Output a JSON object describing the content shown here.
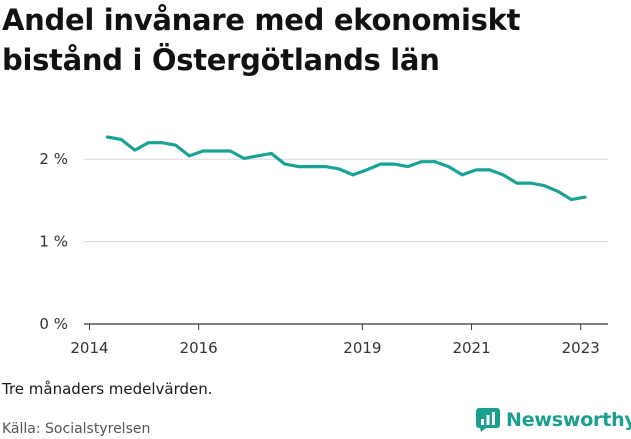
{
  "title": "Andel invånare med ekonomiskt bistånd i Östergötlands län",
  "note": "Tre månaders medelvärden.",
  "source": "Källa: Socialstyrelsen",
  "brand": {
    "name": "Newsworthy",
    "icon": "newsworthy-bar-chart-icon",
    "color": "#1a9e8e"
  },
  "colors": {
    "line": "#1aa394",
    "grid": "#d9d9d9",
    "axis": "#333333"
  },
  "chart_data": {
    "type": "line",
    "title": "Andel invånare med ekonomiskt bistånd i Östergötlands län",
    "xlabel": "",
    "ylabel": "",
    "ylim": [
      0,
      2.5
    ],
    "yticks": [
      0,
      1,
      2
    ],
    "ytick_labels": [
      "0 %",
      "1 %",
      "2 %"
    ],
    "xlim": [
      2013.9,
      2023.5
    ],
    "xticks": [
      2014,
      2016,
      2019,
      2021,
      2023
    ],
    "xtick_labels": [
      "2014",
      "2016",
      "2019",
      "2021",
      "2023"
    ],
    "grid": true,
    "series": [
      {
        "x": [
          2014.33,
          2014.58,
          2014.83,
          2015.08,
          2015.33,
          2015.58,
          2015.83,
          2016.08,
          2016.33,
          2016.58,
          2016.83,
          2017.08,
          2017.33,
          2017.58,
          2017.83,
          2018.08,
          2018.33,
          2018.58,
          2018.83,
          2019.08,
          2019.33,
          2019.58,
          2019.83,
          2020.08,
          2020.33,
          2020.58,
          2020.83,
          2021.08,
          2021.33,
          2021.58,
          2021.83,
          2022.08,
          2022.33,
          2022.58,
          2022.83,
          2023.08
        ],
        "values": [
          2.27,
          2.24,
          2.11,
          2.2,
          2.2,
          2.17,
          2.04,
          2.1,
          2.1,
          2.1,
          2.01,
          2.04,
          2.07,
          1.94,
          1.91,
          1.91,
          1.91,
          1.88,
          1.81,
          1.87,
          1.94,
          1.94,
          1.91,
          1.97,
          1.97,
          1.91,
          1.81,
          1.87,
          1.87,
          1.81,
          1.71,
          1.71,
          1.68,
          1.61,
          1.51,
          1.54
        ]
      }
    ]
  }
}
